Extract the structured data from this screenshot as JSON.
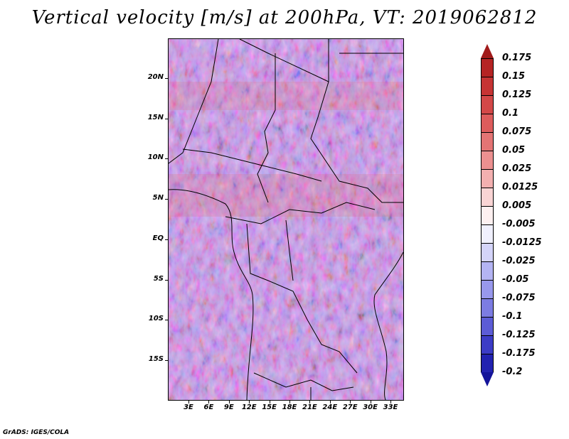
{
  "title": "Vertical velocity [m/s] at 200hPa, VT: 2019062812",
  "credit": "GrADS: IGES/COLA",
  "map": {
    "latitude_labels": [
      "20N",
      "15N",
      "10N",
      "5N",
      "EQ",
      "5S",
      "10S",
      "15S"
    ],
    "longitude_labels": [
      "3E",
      "6E",
      "9E",
      "12E",
      "15E",
      "18E",
      "21E",
      "24E",
      "27E",
      "30E",
      "33E"
    ],
    "field": "vertical velocity",
    "level": "200hPa",
    "valid_time": "2019062812"
  },
  "colorbar": {
    "labels": [
      "0.175",
      "0.15",
      "0.125",
      "0.1",
      "0.075",
      "0.05",
      "0.025",
      "0.0125",
      "0.005",
      "-0.005",
      "-0.0125",
      "-0.025",
      "-0.05",
      "-0.075",
      "-0.1",
      "-0.125",
      "-0.175",
      "-0.2"
    ],
    "colors": [
      "#a11a1a",
      "#b52424",
      "#c63434",
      "#d34848",
      "#dd5c5c",
      "#e47474",
      "#ec9090",
      "#f3b0b0",
      "#f9d4d4",
      "#fdf0f0",
      "#f0f0fd",
      "#d4d4f9",
      "#b4b4f3",
      "#9898ec",
      "#7c7ce2",
      "#5c5cd6",
      "#3c3cc6",
      "#2222b0",
      "#14149a"
    ]
  }
}
